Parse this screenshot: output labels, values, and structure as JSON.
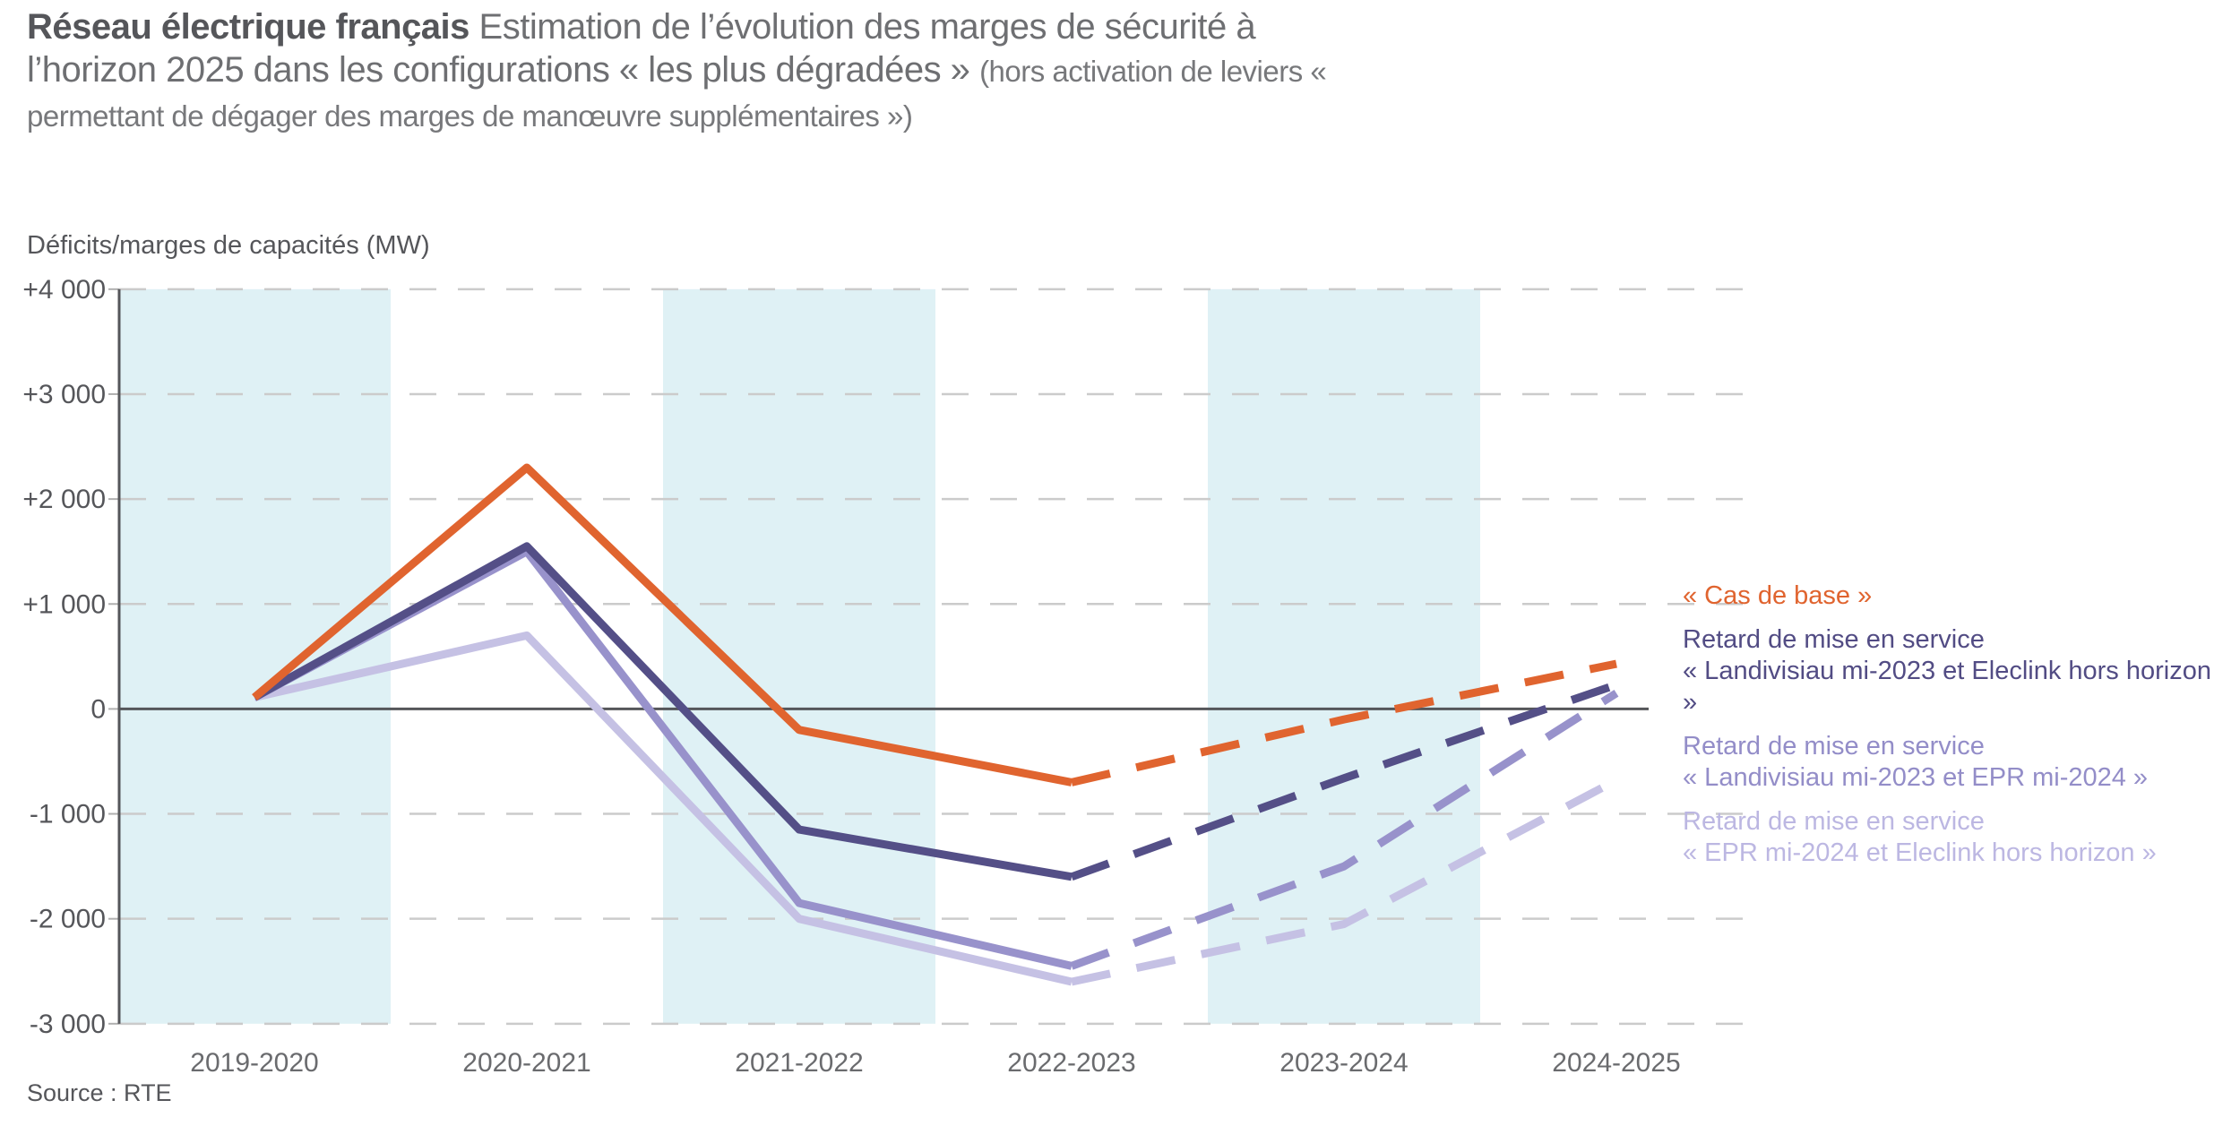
{
  "title": {
    "bold": "Réseau électrique français",
    "regular": "Estimation de l’évolution des marges de sécurité à l’horizon 2025 dans les configurations « les plus dégradées »",
    "parenthetical": "(hors activation de leviers « permettant de dégager des marges de manœuvre supplémentaires »)"
  },
  "source": "Source : RTE",
  "chart_data": {
    "type": "line",
    "title": "Estimation de l’évolution des marges de sécurité à l’horizon 2025",
    "ylabel": "Déficits/marges de capacités (MW)",
    "xlabel": "",
    "ylim": [
      -3000,
      4000
    ],
    "grid": "horizontal-dashed",
    "legend_position": "right",
    "categories": [
      "2019-2020",
      "2020-2021",
      "2021-2022",
      "2022-2023",
      "2023-2024",
      "2024-2025"
    ],
    "yticks": [
      {
        "value": 4000,
        "label": "+4 000"
      },
      {
        "value": 3000,
        "label": "+3 000"
      },
      {
        "value": 2000,
        "label": "+2 000"
      },
      {
        "value": 1000,
        "label": "+1 000"
      },
      {
        "value": 0,
        "label": "0"
      },
      {
        "value": -1000,
        "label": "-1 000"
      },
      {
        "value": -2000,
        "label": "-2 000"
      },
      {
        "value": -3000,
        "label": "-3 000"
      }
    ],
    "highlight_band_categories": [
      "2019-2020",
      "2021-2022",
      "2023-2024"
    ],
    "highlight_band_color": "#dff1f5",
    "solid_until_index": 3,
    "style_note": "values after 2022-2023 are projections drawn dashed",
    "series": [
      {
        "name": "« Cas de base »",
        "color": "#e0642f",
        "values": [
          110,
          2300,
          -200,
          -700,
          -100,
          430
        ]
      },
      {
        "name": "Retard de mise en service « Landivisiau mi-2023 et Eleclink hors horizon »",
        "color": "#544f87",
        "values": [
          110,
          1550,
          -1150,
          -1600,
          -660,
          230
        ]
      },
      {
        "name": "Retard de mise en service « Landivisiau mi-2023 et EPR mi-2024 »",
        "color": "#9892cb",
        "values": [
          110,
          1500,
          -1850,
          -2450,
          -1500,
          150
        ]
      },
      {
        "name": "Retard de mise en service « EPR mi-2024 et Eleclink hors horizon »",
        "color": "#c5c1e4",
        "values": [
          110,
          700,
          -2000,
          -2600,
          -2050,
          -680
        ]
      }
    ]
  },
  "legend": {
    "entries": [
      {
        "color": "#e0642f",
        "lines": [
          "« Cas de base »"
        ]
      },
      {
        "color": "#524c84",
        "lines": [
          "Retard de mise en service",
          "« Landivisiau mi-2023 et Eleclink hors horizon »"
        ]
      },
      {
        "color": "#938dc8",
        "lines": [
          "Retard de mise en service",
          "« Landivisiau mi-2023 et EPR mi-2024 »"
        ]
      },
      {
        "color": "#bcb7e2",
        "lines": [
          "Retard de mise en service",
          "« EPR mi-2024 et Eleclink hors horizon »"
        ]
      }
    ]
  }
}
